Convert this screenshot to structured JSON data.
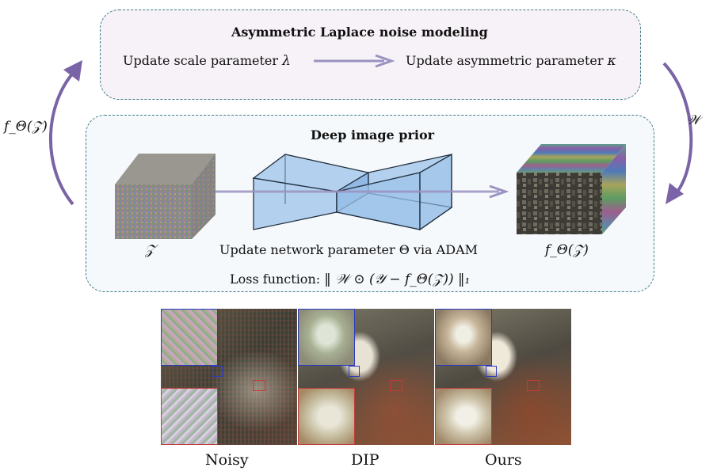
{
  "laplace": {
    "title": "Asymmetric Laplace noise modeling",
    "step1_text": "Update scale parameter",
    "step1_sym": "λ",
    "step2_text": "Update asymmetric parameter",
    "step2_sym": "κ"
  },
  "dip": {
    "title": "Deep image prior",
    "input_label": "𝒵",
    "output_label": "f_Θ(𝒵)",
    "update_text": "Update network parameter Θ via ADAM",
    "loss_prefix": "Loss function:",
    "loss_formula": "‖ 𝒲 ⊙ (𝒴 − f_Θ(𝒵)) ‖₁"
  },
  "arrows": {
    "left_label": "f_Θ(𝒵)",
    "right_label": "𝒲"
  },
  "colors": {
    "border": "#3f7c86",
    "arrow": "#7a63a6",
    "flow_arrow": "#9a92c0",
    "network_fill": "#9cc3ea",
    "network_stroke": "#22303f"
  },
  "results": {
    "captions": [
      "Noisy",
      "DIP",
      "Ours"
    ]
  }
}
